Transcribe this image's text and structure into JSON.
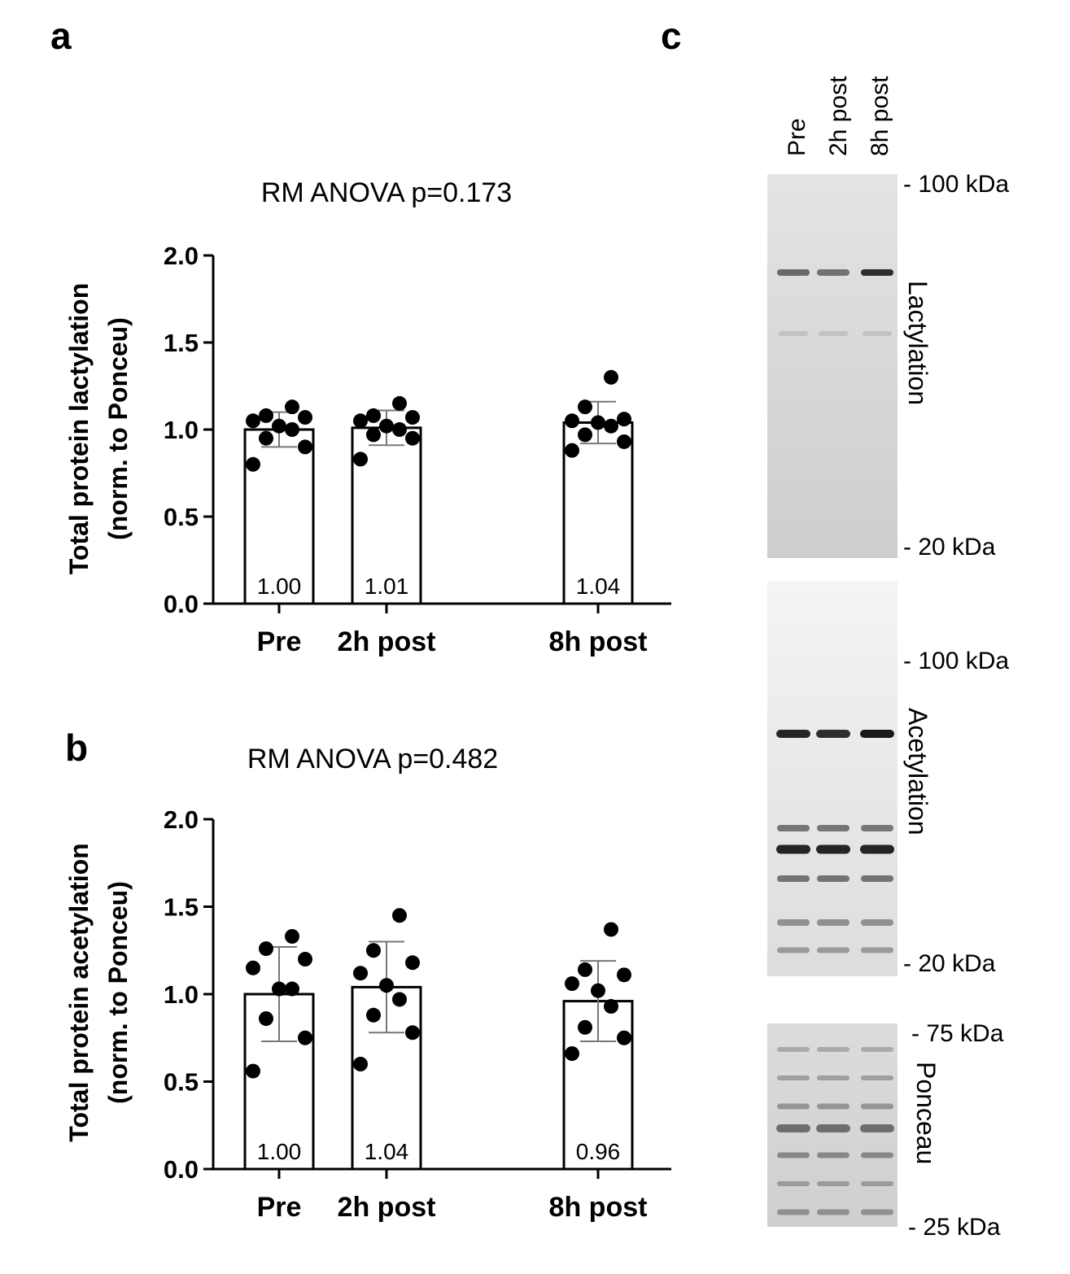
{
  "panels": {
    "a": "a",
    "b": "b",
    "c": "c"
  },
  "chart_data": [
    {
      "type": "bar",
      "panel": "a",
      "title": "RM ANOVA p=0.173",
      "ylabel_line1": "Total protein lactylation",
      "ylabel_line2": "(norm. to Ponceu)",
      "categories": [
        "Pre",
        "2h post",
        "8h post"
      ],
      "ylim": [
        0,
        2.0
      ],
      "yticks": [
        "0.0",
        "0.5",
        "1.0",
        "1.5",
        "2.0"
      ],
      "values": [
        1.0,
        1.01,
        1.04
      ],
      "value_labels": [
        "1.00",
        "1.01",
        "1.04"
      ],
      "sd": [
        0.1,
        0.1,
        0.12
      ],
      "points": [
        [
          0.8,
          0.9,
          0.95,
          1.0,
          1.02,
          1.05,
          1.07,
          1.08,
          1.13
        ],
        [
          0.83,
          0.95,
          0.97,
          1.0,
          1.02,
          1.05,
          1.07,
          1.08,
          1.15
        ],
        [
          0.88,
          0.93,
          0.97,
          1.02,
          1.04,
          1.05,
          1.06,
          1.13,
          1.3
        ]
      ]
    },
    {
      "type": "bar",
      "panel": "b",
      "title": "RM ANOVA p=0.482",
      "ylabel_line1": "Total protein acetylation",
      "ylabel_line2": "(norm. to Ponceu)",
      "categories": [
        "Pre",
        "2h post",
        "8h post"
      ],
      "ylim": [
        0,
        2.0
      ],
      "yticks": [
        "0.0",
        "0.5",
        "1.0",
        "1.5",
        "2.0"
      ],
      "values": [
        1.0,
        1.04,
        0.96
      ],
      "value_labels": [
        "1.00",
        "1.04",
        "0.96"
      ],
      "sd": [
        0.27,
        0.26,
        0.23
      ],
      "points": [
        [
          0.56,
          0.75,
          0.86,
          1.03,
          1.03,
          1.15,
          1.2,
          1.26,
          1.33
        ],
        [
          0.6,
          0.78,
          0.88,
          0.97,
          1.05,
          1.12,
          1.18,
          1.25,
          1.45
        ],
        [
          0.66,
          0.75,
          0.81,
          0.93,
          1.02,
          1.06,
          1.11,
          1.14,
          1.37
        ]
      ]
    }
  ],
  "blots": {
    "lanes": [
      "Pre",
      "2h post",
      "8h post"
    ],
    "lactylation": {
      "label": "Lactylation",
      "marker_top": "- 100 kDa",
      "marker_bottom": "- 20 kDa"
    },
    "acetylation": {
      "label": "Acetylation",
      "marker_top": "- 100 kDa",
      "marker_bottom": "- 20 kDa"
    },
    "ponceau": {
      "label": "Ponceau",
      "marker_top": "- 75 kDa",
      "marker_bottom": "- 25 kDa"
    }
  }
}
